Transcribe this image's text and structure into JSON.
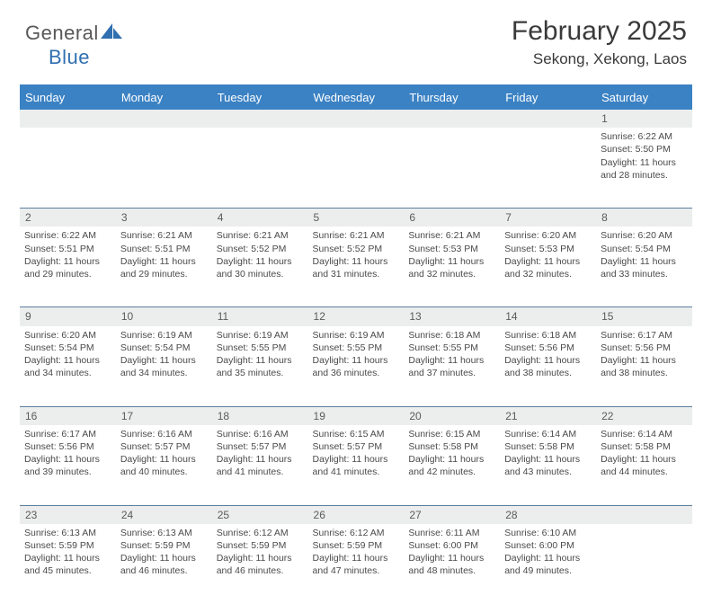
{
  "brand": {
    "name_part1": "General",
    "name_part2": "Blue",
    "accent_color": "#2f6fb0"
  },
  "title": "February 2025",
  "location": "Sekong, Xekong, Laos",
  "colors": {
    "header_bg": "#3b82c4",
    "header_text": "#ffffff",
    "daynum_bg": "#eceded",
    "rule": "#5a7fa0",
    "body_text": "#4a4a4a"
  },
  "weekdays": [
    "Sunday",
    "Monday",
    "Tuesday",
    "Wednesday",
    "Thursday",
    "Friday",
    "Saturday"
  ],
  "weeks": [
    [
      null,
      null,
      null,
      null,
      null,
      null,
      {
        "n": 1,
        "sunrise": "6:22 AM",
        "sunset": "5:50 PM",
        "daylight": "11 hours and 28 minutes."
      }
    ],
    [
      {
        "n": 2,
        "sunrise": "6:22 AM",
        "sunset": "5:51 PM",
        "daylight": "11 hours and 29 minutes."
      },
      {
        "n": 3,
        "sunrise": "6:21 AM",
        "sunset": "5:51 PM",
        "daylight": "11 hours and 29 minutes."
      },
      {
        "n": 4,
        "sunrise": "6:21 AM",
        "sunset": "5:52 PM",
        "daylight": "11 hours and 30 minutes."
      },
      {
        "n": 5,
        "sunrise": "6:21 AM",
        "sunset": "5:52 PM",
        "daylight": "11 hours and 31 minutes."
      },
      {
        "n": 6,
        "sunrise": "6:21 AM",
        "sunset": "5:53 PM",
        "daylight": "11 hours and 32 minutes."
      },
      {
        "n": 7,
        "sunrise": "6:20 AM",
        "sunset": "5:53 PM",
        "daylight": "11 hours and 32 minutes."
      },
      {
        "n": 8,
        "sunrise": "6:20 AM",
        "sunset": "5:54 PM",
        "daylight": "11 hours and 33 minutes."
      }
    ],
    [
      {
        "n": 9,
        "sunrise": "6:20 AM",
        "sunset": "5:54 PM",
        "daylight": "11 hours and 34 minutes."
      },
      {
        "n": 10,
        "sunrise": "6:19 AM",
        "sunset": "5:54 PM",
        "daylight": "11 hours and 34 minutes."
      },
      {
        "n": 11,
        "sunrise": "6:19 AM",
        "sunset": "5:55 PM",
        "daylight": "11 hours and 35 minutes."
      },
      {
        "n": 12,
        "sunrise": "6:19 AM",
        "sunset": "5:55 PM",
        "daylight": "11 hours and 36 minutes."
      },
      {
        "n": 13,
        "sunrise": "6:18 AM",
        "sunset": "5:55 PM",
        "daylight": "11 hours and 37 minutes."
      },
      {
        "n": 14,
        "sunrise": "6:18 AM",
        "sunset": "5:56 PM",
        "daylight": "11 hours and 38 minutes."
      },
      {
        "n": 15,
        "sunrise": "6:17 AM",
        "sunset": "5:56 PM",
        "daylight": "11 hours and 38 minutes."
      }
    ],
    [
      {
        "n": 16,
        "sunrise": "6:17 AM",
        "sunset": "5:56 PM",
        "daylight": "11 hours and 39 minutes."
      },
      {
        "n": 17,
        "sunrise": "6:16 AM",
        "sunset": "5:57 PM",
        "daylight": "11 hours and 40 minutes."
      },
      {
        "n": 18,
        "sunrise": "6:16 AM",
        "sunset": "5:57 PM",
        "daylight": "11 hours and 41 minutes."
      },
      {
        "n": 19,
        "sunrise": "6:15 AM",
        "sunset": "5:57 PM",
        "daylight": "11 hours and 41 minutes."
      },
      {
        "n": 20,
        "sunrise": "6:15 AM",
        "sunset": "5:58 PM",
        "daylight": "11 hours and 42 minutes."
      },
      {
        "n": 21,
        "sunrise": "6:14 AM",
        "sunset": "5:58 PM",
        "daylight": "11 hours and 43 minutes."
      },
      {
        "n": 22,
        "sunrise": "6:14 AM",
        "sunset": "5:58 PM",
        "daylight": "11 hours and 44 minutes."
      }
    ],
    [
      {
        "n": 23,
        "sunrise": "6:13 AM",
        "sunset": "5:59 PM",
        "daylight": "11 hours and 45 minutes."
      },
      {
        "n": 24,
        "sunrise": "6:13 AM",
        "sunset": "5:59 PM",
        "daylight": "11 hours and 46 minutes."
      },
      {
        "n": 25,
        "sunrise": "6:12 AM",
        "sunset": "5:59 PM",
        "daylight": "11 hours and 46 minutes."
      },
      {
        "n": 26,
        "sunrise": "6:12 AM",
        "sunset": "5:59 PM",
        "daylight": "11 hours and 47 minutes."
      },
      {
        "n": 27,
        "sunrise": "6:11 AM",
        "sunset": "6:00 PM",
        "daylight": "11 hours and 48 minutes."
      },
      {
        "n": 28,
        "sunrise": "6:10 AM",
        "sunset": "6:00 PM",
        "daylight": "11 hours and 49 minutes."
      },
      null
    ]
  ],
  "labels": {
    "sunrise": "Sunrise:",
    "sunset": "Sunset:",
    "daylight": "Daylight:"
  }
}
